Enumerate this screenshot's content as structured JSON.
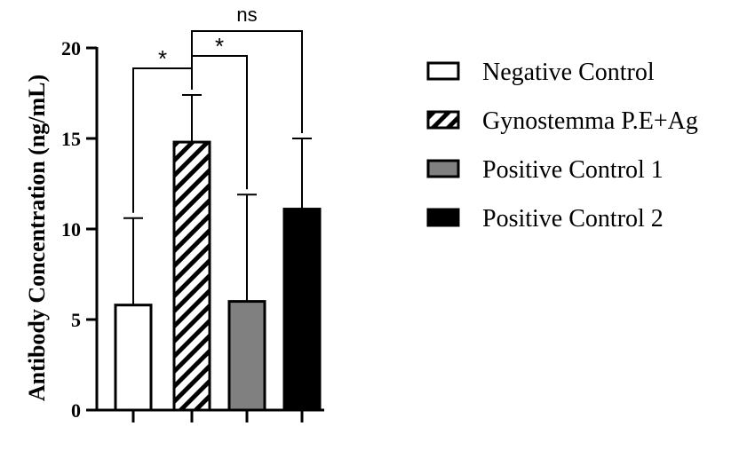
{
  "chart_data": {
    "type": "bar",
    "ylabel": "Antibody Concentration (ng/mL)",
    "ylim": [
      0,
      20
    ],
    "yticks": [
      "0",
      "5",
      "10",
      "15",
      "20"
    ],
    "categories": [
      "Negative Control",
      "Gynostemma P.E+Ag",
      "Positive Control 1",
      "Positive Control 2"
    ],
    "values": [
      5.8,
      14.8,
      6.0,
      11.1
    ],
    "errors": [
      4.8,
      2.6,
      5.9,
      3.9
    ],
    "bar_styles": [
      "white",
      "hatched",
      "gray",
      "black"
    ],
    "colors": [
      "#ffffff",
      "#ffffff",
      "#808080",
      "#000000"
    ],
    "significance": [
      {
        "from": 0,
        "to": 1,
        "label": "*"
      },
      {
        "from": 1,
        "to": 2,
        "label": "*"
      },
      {
        "from": 1,
        "to": 3,
        "label": "ns"
      }
    ],
    "legend_position": "right"
  }
}
